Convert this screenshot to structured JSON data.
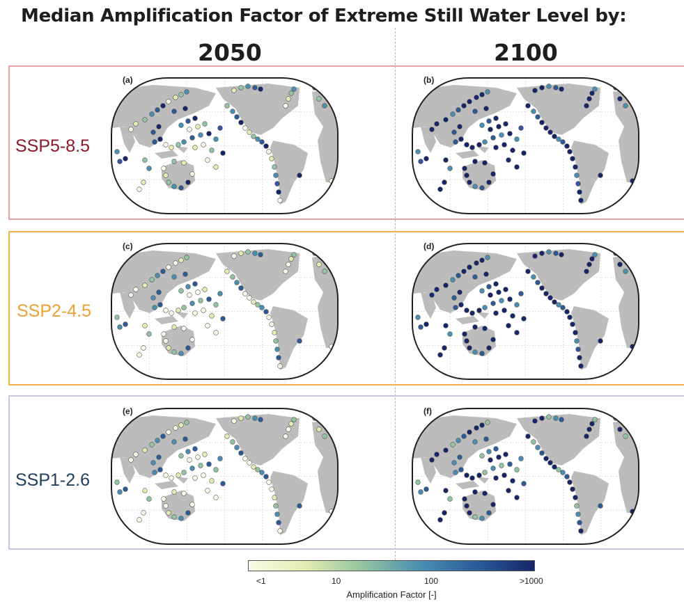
{
  "title": "Median Amplification Factor of Extreme Still Water Level by:",
  "columns": [
    "2050",
    "2100"
  ],
  "rows": [
    {
      "label": "SSP5-8.5",
      "color": "#8b1a2b",
      "border": "#e8a0a3"
    },
    {
      "label": "SSP2-4.5",
      "color": "#f0a030",
      "border": "#f4b24a"
    },
    {
      "label": "SSP1-2.6",
      "color": "#1f3f5c",
      "border": "#c3c6dc"
    }
  ],
  "panels": [
    "(a)",
    "(b)",
    "(c)",
    "(d)",
    "(e)",
    "(f)"
  ],
  "colorbar": {
    "title": "Amplification Factor [-]",
    "ticks": [
      "<1",
      "10",
      "100",
      ">1000"
    ],
    "colors": [
      "#fafbe8",
      "#e2ecb0",
      "#93c4a0",
      "#4a8fb2",
      "#2a5b98",
      "#15256a"
    ]
  },
  "map_style": {
    "land": "#bcbcbc",
    "ocean": "#ffffff",
    "outline": "#222222",
    "point_outline": "#555555"
  }
}
